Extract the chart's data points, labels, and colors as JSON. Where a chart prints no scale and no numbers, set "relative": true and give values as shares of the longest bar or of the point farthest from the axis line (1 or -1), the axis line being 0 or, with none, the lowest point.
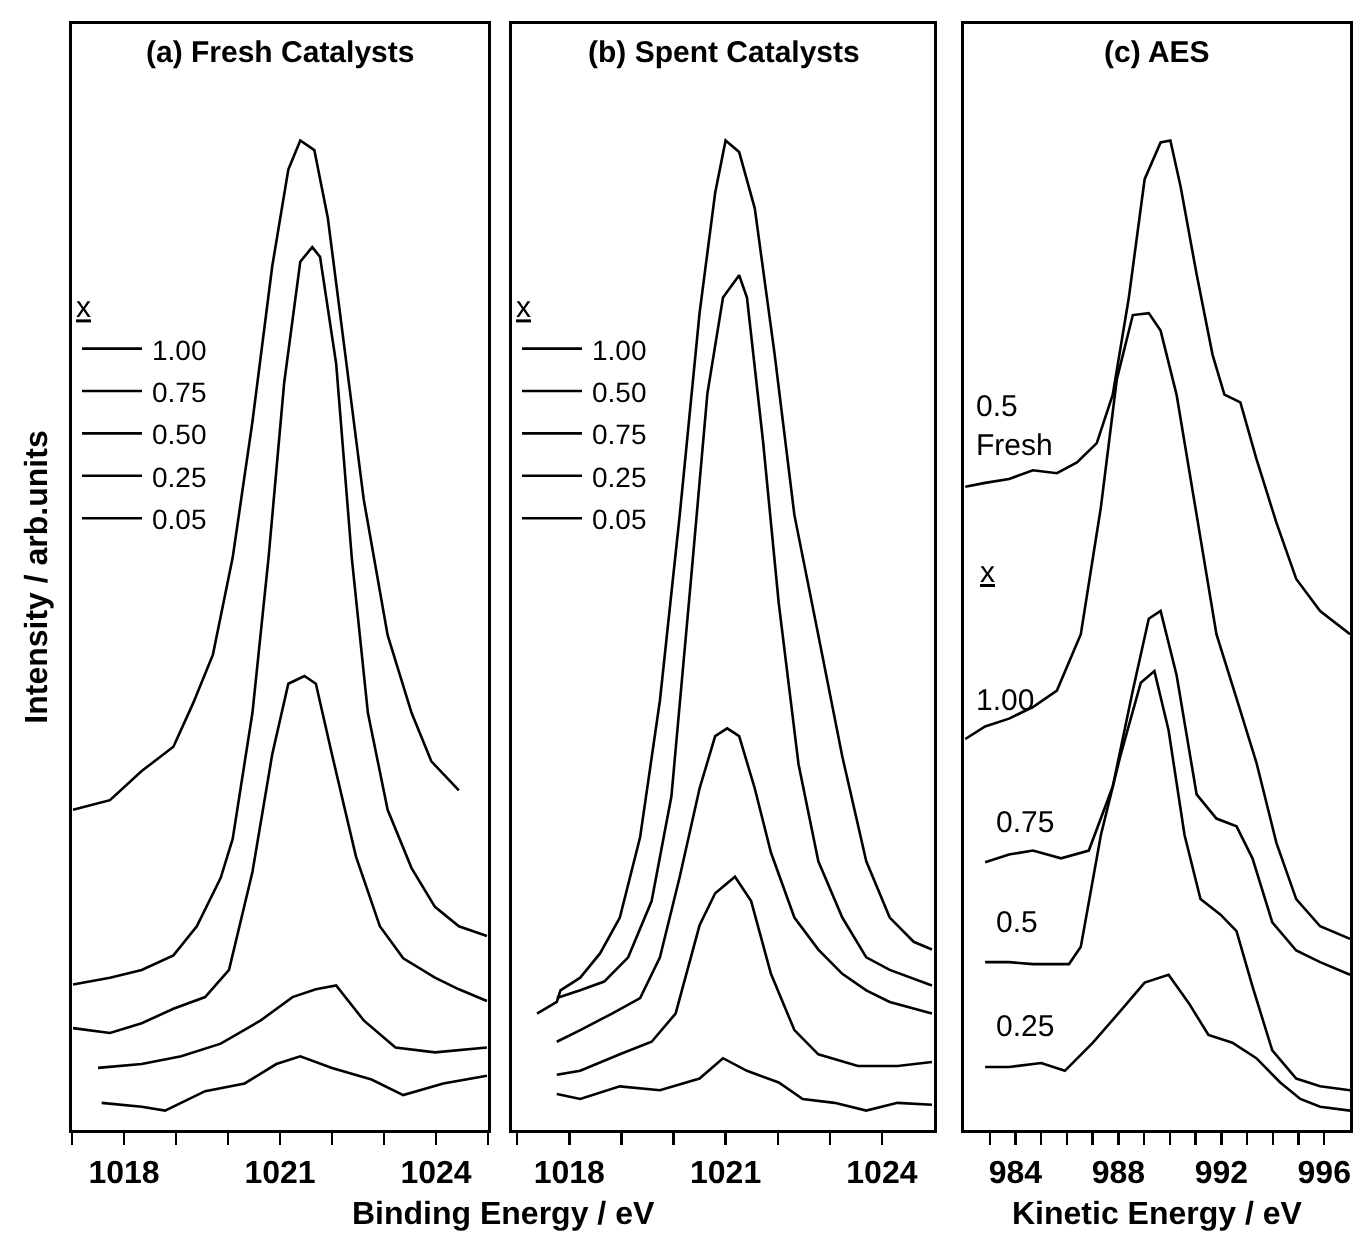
{
  "chart_data": [
    {
      "type": "line",
      "title": "(a) Fresh Catalysts",
      "xlabel": "Binding Energy / eV",
      "ylabel": "Intensity / arb.units",
      "legend_title": "x",
      "legend": "top left",
      "relative": true,
      "grid": false,
      "marker": "none",
      "line_style": "solid",
      "tick_labels": "x",
      "xlim": [
        1017,
        1025
      ],
      "xticks": [
        {
          "value": 1017,
          "label": null
        },
        1018,
        {
          "value": 1019,
          "label": null
        },
        {
          "value": 1020,
          "label": null
        },
        1021,
        {
          "value": 1022,
          "label": null
        },
        {
          "value": 1023,
          "label": null
        },
        1024,
        {
          "value": 1025,
          "label": null
        }
      ],
      "series": [
        {
          "name": "1.00",
          "color": "#000000",
          "x": [
            1017.02,
            1017.73,
            1018.34,
            1018.95,
            1019.33,
            1019.71,
            1020.09,
            1020.47,
            1020.85,
            1021.16,
            1021.39,
            1021.66,
            1021.92,
            1022.23,
            1022.61,
            1023.07,
            1023.53,
            1023.91,
            1024.44
          ],
          "values": [
            0.31,
            0.32,
            0.35,
            0.375,
            0.42,
            0.47,
            0.57,
            0.71,
            0.87,
            0.97,
            1.0,
            0.99,
            0.92,
            0.79,
            0.63,
            0.49,
            0.41,
            0.36,
            0.33
          ]
        },
        {
          "name": "0.75",
          "color": "#000000",
          "x": [
            1017.02,
            1017.73,
            1018.34,
            1018.95,
            1019.4,
            1019.86,
            1020.09,
            1020.47,
            1020.78,
            1021.08,
            1021.39,
            1021.62,
            1021.77,
            1022.08,
            1022.38,
            1022.69,
            1023.07,
            1023.53,
            1023.98,
            1024.44,
            1024.98
          ],
          "values": [
            0.13,
            0.137,
            0.145,
            0.16,
            0.19,
            0.24,
            0.28,
            0.41,
            0.57,
            0.75,
            0.875,
            0.89,
            0.88,
            0.77,
            0.57,
            0.41,
            0.31,
            0.25,
            0.21,
            0.19,
            0.18
          ]
        },
        {
          "name": "0.50",
          "color": "#000000",
          "x": [
            1017.02,
            1017.73,
            1018.34,
            1018.95,
            1019.56,
            1020.02,
            1020.47,
            1020.85,
            1021.16,
            1021.47,
            1021.69,
            1022.0,
            1022.46,
            1022.92,
            1023.37,
            1023.98,
            1024.44,
            1024.98
          ],
          "values": [
            0.085,
            0.08,
            0.09,
            0.105,
            0.117,
            0.145,
            0.246,
            0.367,
            0.44,
            0.448,
            0.44,
            0.367,
            0.262,
            0.19,
            0.157,
            0.137,
            0.125,
            0.113
          ]
        },
        {
          "name": "0.25",
          "color": "#000000",
          "x": [
            1017.5,
            1018.34,
            1019.1,
            1019.86,
            1020.63,
            1021.24,
            1021.69,
            1022.08,
            1022.61,
            1023.22,
            1023.98,
            1024.98
          ],
          "values": [
            0.044,
            0.048,
            0.056,
            0.069,
            0.093,
            0.117,
            0.125,
            0.129,
            0.093,
            0.065,
            0.06,
            0.065
          ]
        },
        {
          "name": "0.05",
          "color": "#000000",
          "x": [
            1017.57,
            1018.34,
            1018.79,
            1019.56,
            1020.32,
            1020.93,
            1021.39,
            1022.0,
            1022.76,
            1023.37,
            1024.14,
            1024.98
          ],
          "values": [
            0.008,
            0.004,
            0,
            0.02,
            0.028,
            0.048,
            0.056,
            0.044,
            0.032,
            0.016,
            0.028,
            0.036
          ]
        }
      ]
    },
    {
      "type": "line",
      "title": "(b) Spent Catalysts",
      "legend_title": "x",
      "legend": "top left",
      "relative": true,
      "grid": false,
      "marker": "none",
      "line_style": "solid",
      "tick_labels": "x",
      "xlim": [
        1016.9,
        1025
      ],
      "xticks": [
        {
          "value": 1017,
          "label": null
        },
        1018,
        {
          "value": 1019,
          "label": null
        },
        {
          "value": 1020,
          "label": null
        },
        1021,
        {
          "value": 1022,
          "label": null
        },
        {
          "value": 1023,
          "label": null
        },
        1024
      ],
      "series": [
        {
          "name": "1.00",
          "color": "#000000",
          "x": [
            1017.38,
            1017.76,
            1017.83,
            1018.21,
            1018.59,
            1018.97,
            1019.36,
            1019.74,
            1020.12,
            1020.5,
            1020.8,
            1021.0,
            1021.26,
            1021.56,
            1021.94,
            1022.32,
            1022.78,
            1023.24,
            1023.7,
            1024.15,
            1024.61,
            1024.96
          ],
          "values": [
            0.1,
            0.112,
            0.124,
            0.137,
            0.162,
            0.199,
            0.282,
            0.423,
            0.614,
            0.822,
            0.946,
            1.0,
            0.988,
            0.93,
            0.78,
            0.614,
            0.49,
            0.365,
            0.257,
            0.199,
            0.174,
            0.166
          ]
        },
        {
          "name": "0.50",
          "color": "#000000",
          "x": [
            1017.76,
            1018.21,
            1018.67,
            1019.13,
            1019.58,
            1019.96,
            1020.35,
            1020.65,
            1020.95,
            1021.26,
            1021.41,
            1021.72,
            1022.02,
            1022.4,
            1022.78,
            1023.24,
            1023.7,
            1024.15,
            1024.96
          ],
          "values": [
            0.116,
            0.124,
            0.133,
            0.158,
            0.216,
            0.324,
            0.556,
            0.739,
            0.838,
            0.861,
            0.838,
            0.689,
            0.523,
            0.357,
            0.257,
            0.199,
            0.158,
            0.145,
            0.129
          ]
        },
        {
          "name": "0.75",
          "color": "#000000",
          "x": [
            1017.76,
            1018.21,
            1018.82,
            1019.36,
            1019.74,
            1020.12,
            1020.5,
            1020.8,
            1021.03,
            1021.26,
            1021.56,
            1021.87,
            1022.32,
            1022.78,
            1023.24,
            1023.7,
            1024.15,
            1024.96
          ],
          "values": [
            0.071,
            0.083,
            0.1,
            0.116,
            0.158,
            0.241,
            0.332,
            0.386,
            0.394,
            0.386,
            0.332,
            0.266,
            0.199,
            0.166,
            0.141,
            0.124,
            0.112,
            0.1
          ]
        },
        {
          "name": "0.25",
          "color": "#000000",
          "x": [
            1017.76,
            1018.21,
            1018.97,
            1019.58,
            1020.04,
            1020.5,
            1020.8,
            1021.18,
            1021.49,
            1021.87,
            1022.32,
            1022.78,
            1023.54,
            1024.3,
            1024.96
          ],
          "values": [
            0.037,
            0.041,
            0.058,
            0.071,
            0.1,
            0.191,
            0.224,
            0.241,
            0.216,
            0.141,
            0.083,
            0.058,
            0.046,
            0.046,
            0.05
          ]
        },
        {
          "name": "0.05",
          "color": "#000000",
          "x": [
            1017.76,
            1018.21,
            1018.97,
            1019.74,
            1020.5,
            1020.95,
            1021.41,
            1022.02,
            1022.48,
            1023.09,
            1023.7,
            1024.3,
            1024.96
          ],
          "values": [
            0.017,
            0.012,
            0.025,
            0.021,
            0.033,
            0.054,
            0.041,
            0.029,
            0.012,
            0.008,
            0,
            0.008,
            0.006
          ]
        }
      ]
    },
    {
      "type": "line",
      "title": "(c) AES",
      "xlabel": "Kinetic Energy / eV",
      "legend": false,
      "relative": true,
      "grid": false,
      "marker": "none",
      "line_style": "solid",
      "tick_labels": "x",
      "xlim": [
        982,
        997
      ],
      "xticks": [
        {
          "value": 983,
          "label": null
        },
        984,
        {
          "value": 985,
          "label": null
        },
        {
          "value": 986,
          "label": null
        },
        {
          "value": 987,
          "label": null
        },
        988,
        {
          "value": 989,
          "label": null
        },
        {
          "value": 990,
          "label": null
        },
        {
          "value": 991,
          "label": null
        },
        992,
        {
          "value": 993,
          "label": null
        },
        {
          "value": 994,
          "label": null
        },
        {
          "value": 995,
          "label": null
        },
        996
      ],
      "annotations": [
        "x"
      ],
      "series": [
        {
          "name": "0.5 Fresh",
          "color": "#000000",
          "x": [
            982.05,
            982.82,
            983.75,
            984.68,
            985.61,
            986.39,
            987.16,
            987.78,
            988.4,
            989.02,
            989.64,
            990.02,
            990.42,
            991.04,
            991.66,
            992.12,
            992.74,
            993.36,
            994.14,
            994.91,
            995.84,
            997.0
          ],
          "values": [
            0.643,
            0.647,
            0.651,
            0.66,
            0.657,
            0.668,
            0.688,
            0.738,
            0.837,
            0.96,
            0.998,
            1.0,
            0.952,
            0.862,
            0.779,
            0.738,
            0.73,
            0.672,
            0.606,
            0.548,
            0.515,
            0.491
          ]
        },
        {
          "name": "1.00",
          "color": "#000000",
          "x": [
            982.05,
            982.82,
            983.75,
            984.68,
            985.61,
            986.54,
            987.32,
            987.94,
            988.56,
            989.18,
            989.64,
            990.26,
            991.04,
            991.81,
            992.59,
            993.36,
            994.14,
            994.91,
            995.84,
            997.0
          ],
          "values": [
            0.383,
            0.396,
            0.404,
            0.416,
            0.433,
            0.491,
            0.622,
            0.754,
            0.82,
            0.822,
            0.804,
            0.738,
            0.614,
            0.491,
            0.425,
            0.359,
            0.276,
            0.218,
            0.19,
            0.177
          ]
        },
        {
          "name": "0.75",
          "color": "#000000",
          "x": [
            982.82,
            983.75,
            984.68,
            985.77,
            986.85,
            987.78,
            988.56,
            989.18,
            989.64,
            990.26,
            991.04,
            991.81,
            992.59,
            993.21,
            993.98,
            994.91,
            995.84,
            997.0
          ],
          "values": [
            0.256,
            0.264,
            0.268,
            0.26,
            0.268,
            0.334,
            0.433,
            0.507,
            0.515,
            0.449,
            0.326,
            0.301,
            0.293,
            0.26,
            0.194,
            0.165,
            0.153,
            0.14
          ]
        },
        {
          "name": "0.5",
          "color": "#000000",
          "x": [
            982.82,
            983.75,
            984.68,
            986.08,
            986.54,
            987.32,
            988.09,
            988.87,
            989.4,
            989.95,
            990.57,
            991.19,
            991.97,
            992.59,
            993.21,
            993.98,
            994.91,
            995.84,
            997.0
          ],
          "values": [
            0.153,
            0.153,
            0.151,
            0.151,
            0.169,
            0.284,
            0.367,
            0.441,
            0.453,
            0.392,
            0.284,
            0.218,
            0.202,
            0.185,
            0.128,
            0.062,
            0.033,
            0.025,
            0.021
          ]
        },
        {
          "name": "0.25",
          "color": "#000000",
          "x": [
            982.82,
            983.75,
            985.0,
            985.92,
            987.01,
            988.09,
            989.02,
            989.95,
            990.73,
            991.5,
            992.43,
            993.36,
            994.29,
            995.07,
            995.84,
            997.0
          ],
          "values": [
            0.045,
            0.045,
            0.049,
            0.041,
            0.07,
            0.103,
            0.132,
            0.14,
            0.111,
            0.078,
            0.07,
            0.054,
            0.029,
            0.012,
            0.004,
            0
          ]
        }
      ]
    }
  ]
}
